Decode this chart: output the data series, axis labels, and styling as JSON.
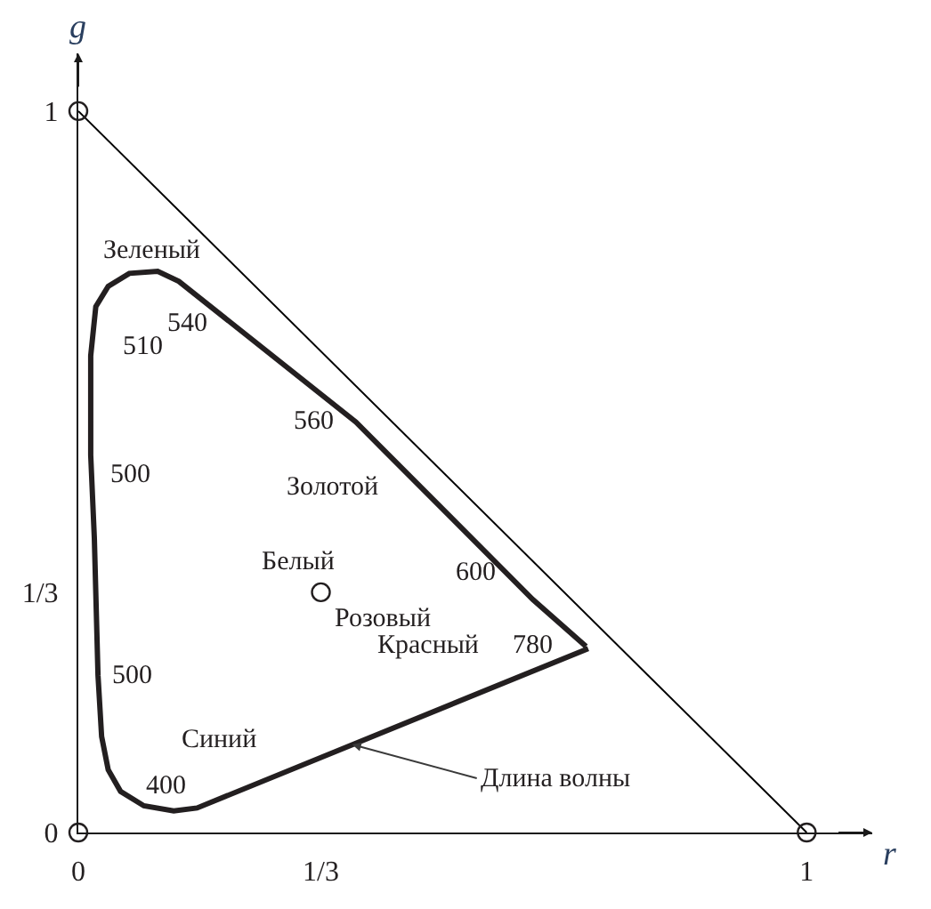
{
  "chart_data": {
    "type": "line",
    "xlabel": "r",
    "ylabel": "g",
    "xlim": [
      0,
      1.09
    ],
    "ylim": [
      0,
      1.08
    ],
    "xticks": [
      0,
      {
        "value": 0.333,
        "label": "1/3"
      },
      1
    ],
    "yticks": [
      0,
      {
        "value": 0.333,
        "label": "1/3"
      },
      1
    ],
    "marker": "none",
    "line_style": "solid",
    "series": [
      {
        "color": "#231f20",
        "x": [
          0.7,
          0.163,
          0.131,
          0.09,
          0.058,
          0.041,
          0.032,
          0.027,
          0.022,
          0.017,
          0.017,
          0.024,
          0.041,
          0.07,
          0.109,
          0.138,
          0.381,
          0.624,
          0.697
        ],
        "values": [
          0.255,
          0.034,
          0.03,
          0.037,
          0.057,
          0.087,
          0.133,
          0.218,
          0.408,
          0.523,
          0.661,
          0.729,
          0.757,
          0.775,
          0.778,
          0.764,
          0.569,
          0.323,
          0.258
        ]
      },
      {
        "color": "#000000",
        "x": [
          0,
          1
        ],
        "values": [
          1,
          0
        ]
      },
      {
        "type": "scatter",
        "color": "#231f20",
        "marker": "circle",
        "x": [
          0,
          1,
          0,
          0.333
        ],
        "values": [
          0,
          0,
          1,
          0.333
        ]
      }
    ],
    "annotations": [
      "Зеленый",
      "540",
      "510",
      "560",
      "500",
      "Золотой",
      "600",
      "Белый",
      "Розовый",
      "Красный",
      "780",
      "500",
      "Синий",
      "400",
      {
        "text": "Длина волны",
        "x": 0.376,
        "y": 0.122
      }
    ]
  }
}
